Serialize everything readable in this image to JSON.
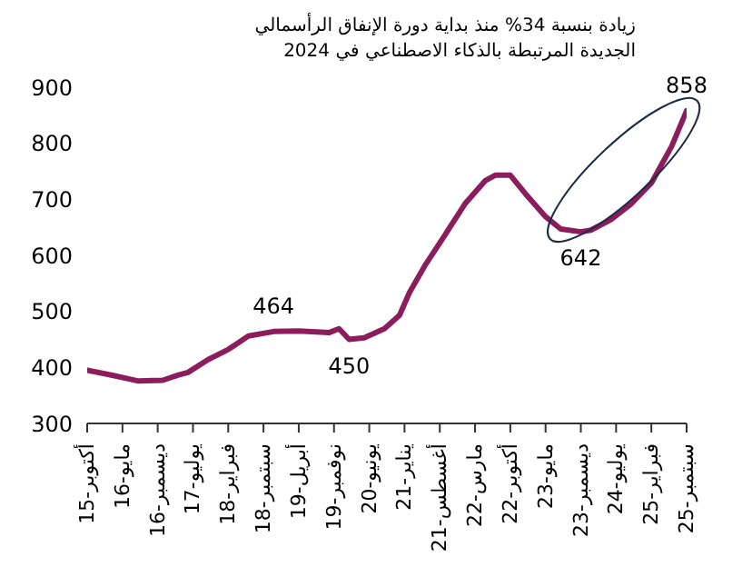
{
  "chart_data": {
    "type": "line",
    "annotations": [
      "زيادة بنسبة 34% منذ بداية دورة الإنفاق الرأسمالي الجديدة المرتبطة بالذكاء الاصطناعي في 2024",
      {
        "text": "464",
        "x": "2018-11",
        "y": 464
      },
      {
        "text": "450",
        "x": "2020-02",
        "y": 450
      },
      {
        "text": "642",
        "x": "2023-12",
        "y": 642
      },
      {
        "text": "858",
        "x": "2025-09",
        "y": 858
      }
    ],
    "x": [
      "2015-10",
      "2016-03",
      "2016-08",
      "2017-01",
      "2017-04",
      "2017-06",
      "2017-10",
      "2018-02",
      "2018-06",
      "2018-11",
      "2019-04",
      "2019-10",
      "2019-12",
      "2020-02",
      "2020-05",
      "2020-09",
      "2020-12",
      "2021-02",
      "2021-05",
      "2021-09",
      "2022-01",
      "2022-05",
      "2022-07",
      "2022-10",
      "2023-01",
      "2023-05",
      "2023-08",
      "2023-12",
      "2024-02",
      "2024-06",
      "2024-10",
      "2025-02",
      "2025-06",
      "2025-09"
    ],
    "series": [
      {
        "color": "#8c1d5c",
        "values": [
          395,
          386,
          376,
          377,
          386,
          391,
          414,
          432,
          456,
          464,
          465,
          462,
          469,
          450,
          453,
          469,
          493,
          534,
          581,
          636,
          692,
          733,
          743,
          743,
          710,
          669,
          647,
          642,
          645,
          664,
          692,
          729,
          794,
          858
        ]
      }
    ],
    "xlim": [
      "2015-10",
      "2025-09"
    ],
    "xticks": [
      {
        "value": "2015-10",
        "label": "أكتوبر-15"
      },
      {
        "value": "2016-05",
        "label": "مايو-16"
      },
      {
        "value": "2016-12",
        "label": "ديسمبر-16"
      },
      {
        "value": "2017-07",
        "label": "يوليو-17"
      },
      {
        "value": "2018-02",
        "label": "فبراير-18"
      },
      {
        "value": "2018-09",
        "label": "سبتمبر-18"
      },
      {
        "value": "2019-04",
        "label": "أبريل-19"
      },
      {
        "value": "2019-11",
        "label": "نوفمبر-19"
      },
      {
        "value": "2020-06",
        "label": "يونيو-20"
      },
      {
        "value": "2021-01",
        "label": "يناير-21"
      },
      {
        "value": "2021-08",
        "label": "أغسطس-21"
      },
      {
        "value": "2022-03",
        "label": "مارس-22"
      },
      {
        "value": "2022-10",
        "label": "أكتوبر-22"
      },
      {
        "value": "2023-05",
        "label": "مايو-23"
      },
      {
        "value": "2023-12",
        "label": "ديسمبر-23"
      },
      {
        "value": "2024-07",
        "label": "يوليو-24"
      },
      {
        "value": "2025-02",
        "label": "فبراير-25"
      },
      {
        "value": "2025-09",
        "label": "سبتمبر-25"
      }
    ],
    "ylim": [
      300,
      900
    ],
    "yticks": [
      300,
      400,
      500,
      600,
      700,
      800,
      900
    ],
    "marker": "none",
    "line_style": "solid"
  }
}
